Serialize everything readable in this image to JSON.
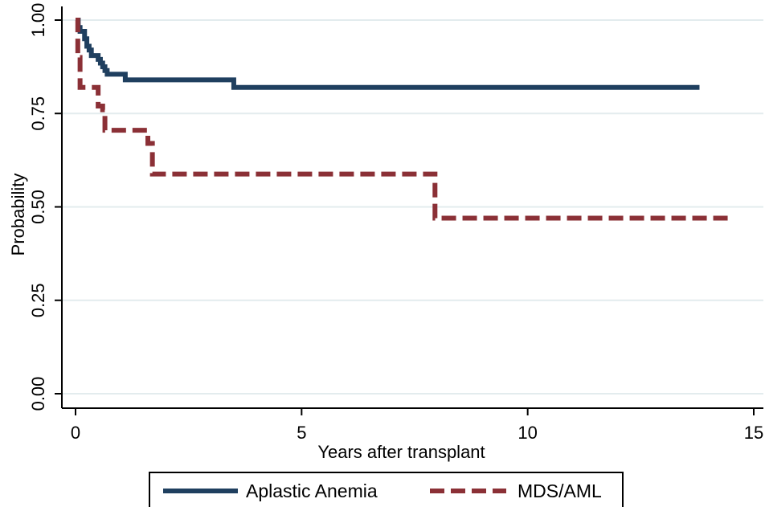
{
  "chart_data": {
    "type": "line",
    "title": "",
    "xlabel": "Years after transplant",
    "ylabel": "Probability",
    "xlim": [
      0,
      15
    ],
    "ylim": [
      0,
      1
    ],
    "x_ticks": [
      0,
      5,
      10,
      15
    ],
    "x_tick_labels": [
      "0",
      "5",
      "10",
      "15"
    ],
    "y_ticks": [
      0,
      0.25,
      0.5,
      0.75,
      1
    ],
    "y_tick_labels": [
      "0.00",
      "0.25",
      "0.50",
      "0.75",
      "1.00"
    ],
    "grid": true,
    "legend_position": "bottom",
    "series": [
      {
        "name": "Aplastic Anemia",
        "color": "#1f3f5f",
        "style": "solid",
        "step": true,
        "x": [
          0,
          0.06,
          0.1,
          0.2,
          0.25,
          0.3,
          0.35,
          0.5,
          0.55,
          0.6,
          0.65,
          0.7,
          0.8,
          1.1,
          3.5,
          13.8
        ],
        "y": [
          1.0,
          0.98,
          0.97,
          0.95,
          0.93,
          0.92,
          0.905,
          0.895,
          0.885,
          0.875,
          0.865,
          0.855,
          0.855,
          0.84,
          0.82,
          0.82
        ]
      },
      {
        "name": "MDS/AML",
        "color": "#8b3036",
        "style": "dashed",
        "step": true,
        "x": [
          0,
          0.05,
          0.1,
          0.5,
          0.6,
          0.65,
          1.6,
          1.7,
          7.95,
          14.5
        ],
        "y": [
          1.0,
          0.9,
          0.82,
          0.77,
          0.76,
          0.705,
          0.67,
          0.588,
          0.47,
          0.47
        ]
      }
    ]
  }
}
